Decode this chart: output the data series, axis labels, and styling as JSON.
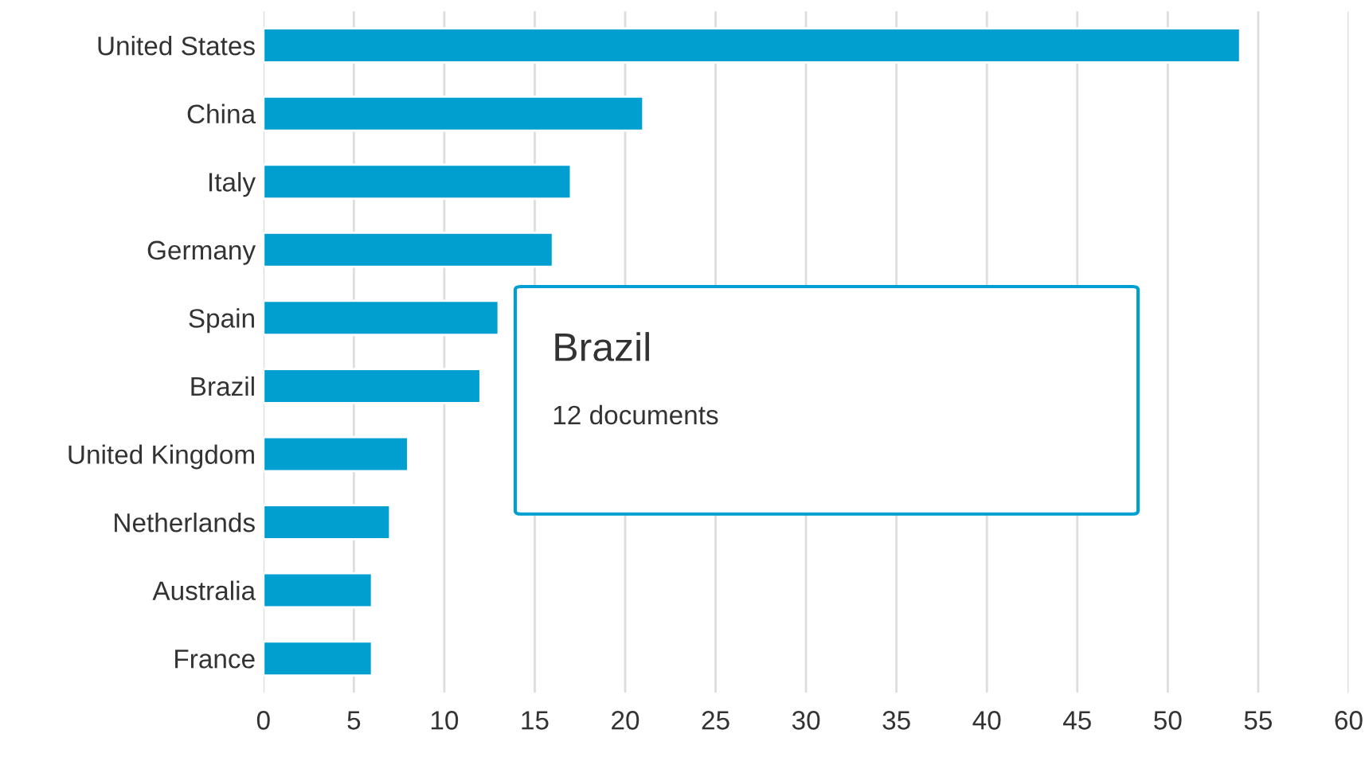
{
  "chart_data": {
    "type": "bar",
    "orientation": "horizontal",
    "categories": [
      "United States",
      "China",
      "Italy",
      "Germany",
      "Spain",
      "Brazil",
      "United Kingdom",
      "Netherlands",
      "Australia",
      "France"
    ],
    "values": [
      54,
      21,
      17,
      16,
      13,
      12,
      8,
      7,
      6,
      6
    ],
    "color": "#009fd0",
    "xlim": [
      0,
      60
    ],
    "xticks": [
      0,
      5,
      10,
      15,
      20,
      25,
      30,
      35,
      40,
      45,
      50,
      55,
      60
    ],
    "grid": "x",
    "legend": false,
    "annotations": [
      "Brazil",
      "12 documents"
    ]
  }
}
